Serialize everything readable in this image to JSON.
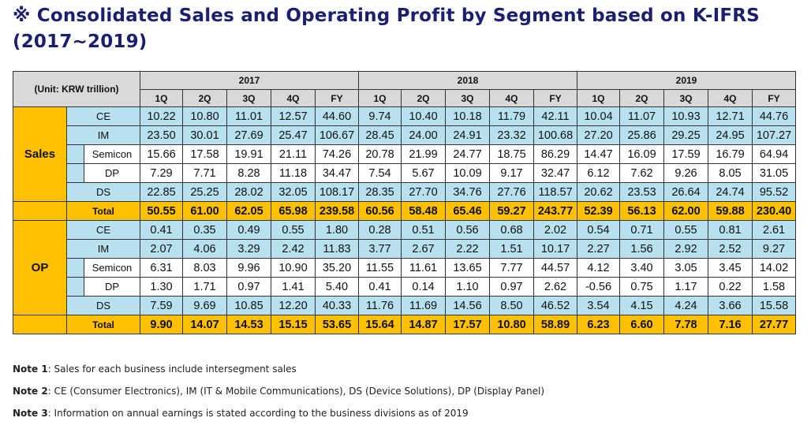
{
  "title": "※ Consolidated Sales and Operating Profit by Segment based on K-IFRS (2017~2019)",
  "table": {
    "unit_label": "(Unit: KRW trillion)",
    "years": [
      "2017",
      "2018",
      "2019"
    ],
    "periods": [
      "1Q",
      "2Q",
      "3Q",
      "4Q",
      "FY"
    ],
    "sections": [
      {
        "label": "Sales",
        "rows": [
          {
            "label": "CE",
            "style": "blue",
            "values": [
              "10.22",
              "10.80",
              "11.01",
              "12.57",
              "44.60",
              "9.74",
              "10.40",
              "10.18",
              "11.79",
              "42.11",
              "10.04",
              "11.07",
              "10.93",
              "12.71",
              "44.76"
            ]
          },
          {
            "label": "IM",
            "style": "blue",
            "values": [
              "23.50",
              "30.01",
              "27.69",
              "25.47",
              "106.67",
              "28.45",
              "24.00",
              "24.91",
              "23.32",
              "100.68",
              "27.20",
              "25.86",
              "29.25",
              "24.95",
              "107.27"
            ]
          },
          {
            "label": "Semicon",
            "style": "white",
            "values": [
              "15.66",
              "17.58",
              "19.91",
              "21.11",
              "74.26",
              "20.78",
              "21.99",
              "24.77",
              "18.75",
              "86.29",
              "14.47",
              "16.09",
              "17.59",
              "16.79",
              "64.94"
            ]
          },
          {
            "label": "DP",
            "style": "white",
            "values": [
              "7.29",
              "7.71",
              "8.28",
              "11.18",
              "34.47",
              "7.54",
              "5.67",
              "10.09",
              "9.17",
              "32.47",
              "6.12",
              "7.62",
              "9.26",
              "8.05",
              "31.05"
            ]
          },
          {
            "label": "DS",
            "style": "blue",
            "values": [
              "22.85",
              "25.25",
              "28.02",
              "32.05",
              "108.17",
              "28.35",
              "27.70",
              "34.76",
              "27.76",
              "118.57",
              "20.62",
              "23.53",
              "26.64",
              "24.74",
              "95.52"
            ]
          },
          {
            "label": "Total",
            "style": "total",
            "values": [
              "50.55",
              "61.00",
              "62.05",
              "65.98",
              "239.58",
              "60.56",
              "58.48",
              "65.46",
              "59.27",
              "243.77",
              "52.39",
              "56.13",
              "62.00",
              "59.88",
              "230.40"
            ]
          }
        ]
      },
      {
        "label": "OP",
        "rows": [
          {
            "label": "CE",
            "style": "blue",
            "values": [
              "0.41",
              "0.35",
              "0.49",
              "0.55",
              "1.80",
              "0.28",
              "0.51",
              "0.56",
              "0.68",
              "2.02",
              "0.54",
              "0.71",
              "0.55",
              "0.81",
              "2.61"
            ]
          },
          {
            "label": "IM",
            "style": "blue",
            "values": [
              "2.07",
              "4.06",
              "3.29",
              "2.42",
              "11.83",
              "3.77",
              "2.67",
              "2.22",
              "1.51",
              "10.17",
              "2.27",
              "1.56",
              "2.92",
              "2.52",
              "9.27"
            ]
          },
          {
            "label": "Semicon",
            "style": "white",
            "values": [
              "6.31",
              "8.03",
              "9.96",
              "10.90",
              "35.20",
              "11.55",
              "11.61",
              "13.65",
              "7.77",
              "44.57",
              "4.12",
              "3.40",
              "3.05",
              "3.45",
              "14.02"
            ]
          },
          {
            "label": "DP",
            "style": "white",
            "values": [
              "1.30",
              "1.71",
              "0.97",
              "1.41",
              "5.40",
              "0.41",
              "0.14",
              "1.10",
              "0.97",
              "2.62",
              "-0.56",
              "0.75",
              "1.17",
              "0.22",
              "1.58"
            ]
          },
          {
            "label": "DS",
            "style": "blue",
            "values": [
              "7.59",
              "9.69",
              "10.85",
              "12.20",
              "40.33",
              "11.76",
              "11.69",
              "14.56",
              "8.50",
              "46.52",
              "3.54",
              "4.15",
              "4.24",
              "3.66",
              "15.58"
            ]
          },
          {
            "label": "Total",
            "style": "total",
            "values": [
              "9.90",
              "14.07",
              "14.53",
              "15.15",
              "53.65",
              "15.64",
              "14.87",
              "17.57",
              "10.80",
              "58.89",
              "6.23",
              "6.60",
              "7.78",
              "7.16",
              "27.77"
            ]
          }
        ]
      }
    ]
  },
  "notes": [
    {
      "label": "Note 1",
      "text": ": Sales for each business include intersegment sales"
    },
    {
      "label": "Note 2",
      "text": ": CE (Consumer Electronics), IM (IT & Mobile Communications), DS (Device Solutions), DP (Display Panel)"
    },
    {
      "label": "Note 3",
      "text": ": Information on annual earnings is stated according to the business divisions as of 2019"
    }
  ]
}
